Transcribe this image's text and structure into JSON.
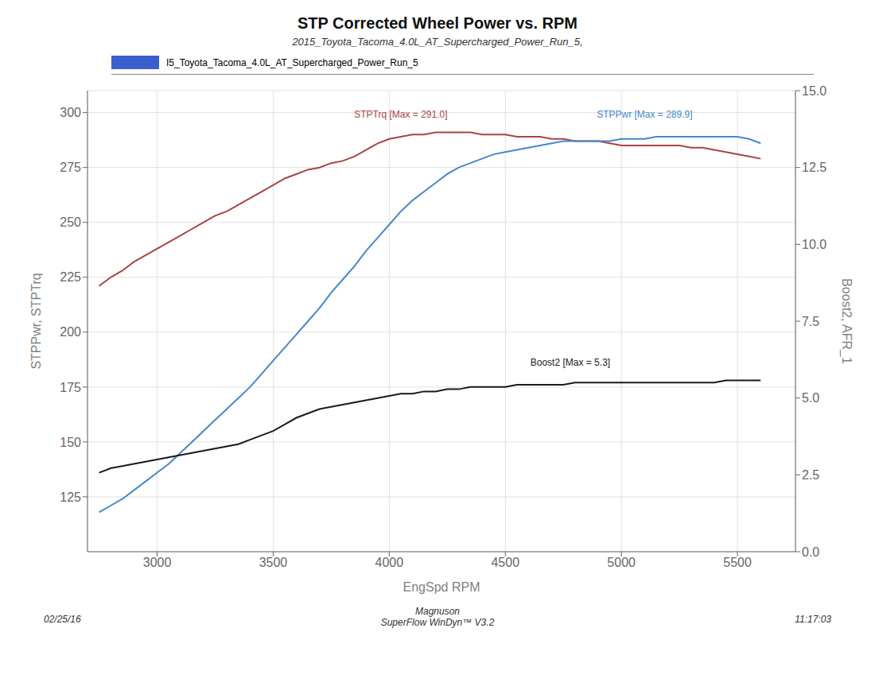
{
  "chart_data": {
    "type": "line",
    "title": "STP Corrected Wheel Power vs. RPM",
    "subtitle": "2015_Toyota_Tacoma_4.0L_AT_Supercharged_Power_Run_5,",
    "legend_label": "I5_Toyota_Tacoma_4.0L_AT_Supercharged_Power_Run_5",
    "legend_color": "#3a5fcd",
    "xlabel": "EngSpd RPM",
    "ylabel": "STPPwr, STPTrq",
    "y2label": "Boost2, AFR_1",
    "footer_left": "02/25/16",
    "footer_center": "Magnuson\nSuperFlow WinDyn™ V3.2",
    "footer_right": "11:17:03",
    "grid": true,
    "xlim": [
      2700,
      5750
    ],
    "xticks": [
      3000,
      3500,
      4000,
      4500,
      5000,
      5500
    ],
    "ylim": [
      100,
      310
    ],
    "yticks": [
      125,
      150,
      175,
      200,
      225,
      250,
      275,
      300
    ],
    "y2lim": [
      0.0,
      15.0
    ],
    "y2ticks": [
      {
        "value": 0,
        "label": "0.0"
      },
      2.5,
      {
        "value": 5,
        "label": "5.0"
      },
      7.5,
      {
        "value": 10,
        "label": "10.0"
      },
      12.5,
      {
        "value": 15,
        "label": "15.0"
      }
    ],
    "annotations": [
      {
        "text": "STPTrq [Max = 291.0]",
        "x": 4050,
        "y": 296,
        "color": "#aa4444"
      },
      {
        "text": "STPPwr [Max = 289.9]",
        "x": 5100,
        "y": 296,
        "color": "#4488cc"
      },
      {
        "text": "Boost2 [Max = 5.3]",
        "x": 4780,
        "y": 183,
        "color": "#1a1a1a"
      }
    ],
    "x": [
      2750,
      2800,
      2850,
      2900,
      2950,
      3000,
      3050,
      3100,
      3150,
      3200,
      3250,
      3300,
      3350,
      3400,
      3450,
      3500,
      3550,
      3600,
      3650,
      3700,
      3750,
      3800,
      3850,
      3900,
      3950,
      4000,
      4050,
      4100,
      4150,
      4200,
      4250,
      4300,
      4350,
      4400,
      4450,
      4500,
      4550,
      4600,
      4650,
      4700,
      4750,
      4800,
      4850,
      4900,
      4950,
      5000,
      5050,
      5100,
      5150,
      5200,
      5250,
      5300,
      5350,
      5400,
      5450,
      5500,
      5550,
      5600
    ],
    "series": [
      {
        "color": "#aa4444",
        "values": [
          221,
          225,
          228,
          232,
          235,
          238,
          241,
          244,
          247,
          250,
          253,
          255,
          258,
          261,
          264,
          267,
          270,
          272,
          274,
          275,
          277,
          278,
          280,
          283,
          286,
          288,
          289,
          290,
          290,
          291,
          291,
          291,
          291,
          290,
          290,
          290,
          289,
          289,
          289,
          288,
          288,
          287,
          287,
          287,
          286,
          285,
          285,
          285,
          285,
          285,
          285,
          284,
          284,
          283,
          282,
          281,
          280,
          279
        ]
      },
      {
        "color": "#4488cc",
        "values": [
          118,
          121,
          124,
          128,
          132,
          136,
          140,
          145,
          150,
          155,
          160,
          165,
          170,
          175,
          181,
          187,
          193,
          199,
          205,
          211,
          218,
          224,
          230,
          237,
          243,
          249,
          255,
          260,
          264,
          268,
          272,
          275,
          277,
          279,
          281,
          282,
          283,
          284,
          285,
          286,
          287,
          287,
          287,
          287,
          287,
          288,
          288,
          288,
          289,
          289,
          289,
          289,
          289,
          289,
          289,
          289,
          288,
          286
        ]
      },
      {
        "color": "#1a1a1a",
        "values": [
          136,
          138,
          139,
          140,
          141,
          142,
          143,
          144,
          145,
          146,
          147,
          148,
          149,
          151,
          153,
          155,
          158,
          161,
          163,
          165,
          166,
          167,
          168,
          169,
          170,
          171,
          172,
          172,
          173,
          173,
          174,
          174,
          175,
          175,
          175,
          175,
          176,
          176,
          176,
          176,
          176,
          177,
          177,
          177,
          177,
          177,
          177,
          177,
          177,
          177,
          177,
          177,
          177,
          177,
          178,
          178,
          178,
          178
        ]
      }
    ]
  }
}
